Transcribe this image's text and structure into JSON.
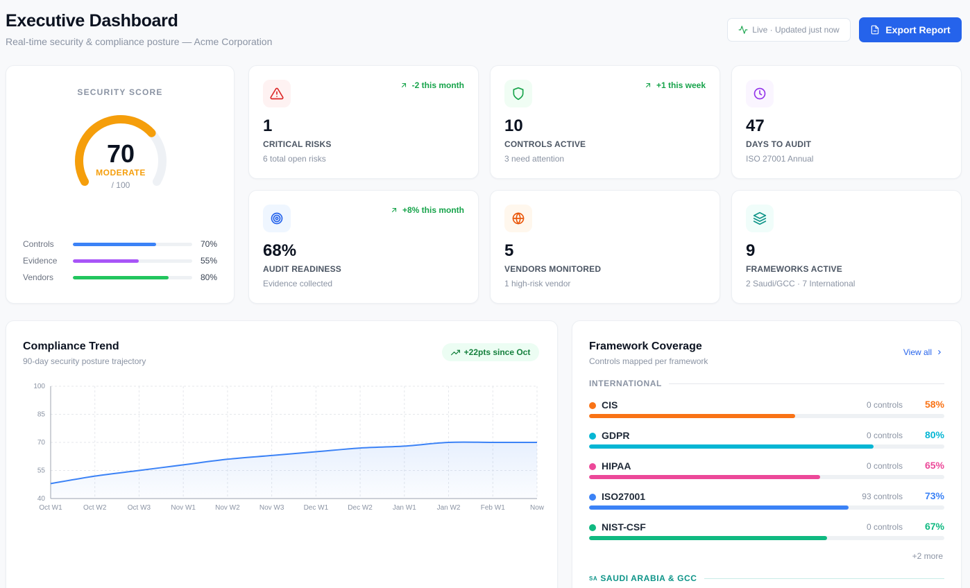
{
  "header": {
    "title": "Executive Dashboard",
    "subtitle": "Real-time security & compliance posture — Acme Corporation",
    "live_status": "Live · Updated just now",
    "export_label": "Export Report"
  },
  "score": {
    "label": "SECURITY SCORE",
    "value": "70",
    "rating": "MODERATE",
    "max": "/ 100",
    "fraction": 0.7,
    "color": "#f59e0b",
    "bars": [
      {
        "label": "Controls",
        "pct": "70%",
        "value": 70,
        "color": "#3b82f6"
      },
      {
        "label": "Evidence",
        "pct": "55%",
        "value": 55,
        "color": "#a855f7"
      },
      {
        "label": "Vendors",
        "pct": "80%",
        "value": 80,
        "color": "#22c55e"
      }
    ]
  },
  "stats": [
    {
      "value": "1",
      "name": "CRITICAL RISKS",
      "sub": "6 total open risks",
      "trend": "-2 this month",
      "icon": "alert-triangle-icon",
      "icon_color": "#dc2626",
      "icon_bg": "#fef2f2"
    },
    {
      "value": "10",
      "name": "CONTROLS ACTIVE",
      "sub": "3 need attention",
      "trend": "+1 this week",
      "icon": "shield-icon",
      "icon_color": "#16a34a",
      "icon_bg": "#f0fdf4"
    },
    {
      "value": "47",
      "name": "DAYS TO AUDIT",
      "sub": "ISO 27001 Annual",
      "trend": "",
      "icon": "clock-icon",
      "icon_color": "#9333ea",
      "icon_bg": "#faf5ff"
    },
    {
      "value": "68%",
      "name": "AUDIT READINESS",
      "sub": "Evidence collected",
      "trend": "+8% this month",
      "icon": "target-icon",
      "icon_color": "#2563eb",
      "icon_bg": "#eff6ff"
    },
    {
      "value": "5",
      "name": "VENDORS MONITORED",
      "sub": "1 high-risk vendor",
      "trend": "",
      "icon": "globe-icon",
      "icon_color": "#ea580c",
      "icon_bg": "#fff7ed"
    },
    {
      "value": "9",
      "name": "FRAMEWORKS ACTIVE",
      "sub": "2 Saudi/GCC · 7 International",
      "trend": "",
      "icon": "layers-icon",
      "icon_color": "#0d9488",
      "icon_bg": "#f0fdfa"
    }
  ],
  "trend": {
    "title": "Compliance Trend",
    "subtitle": "90-day security posture trajectory",
    "badge": "+22pts since Oct"
  },
  "chart_data": {
    "type": "area",
    "categories": [
      "Oct W1",
      "Oct W2",
      "Oct W3",
      "Nov W1",
      "Nov W2",
      "Nov W3",
      "Dec W1",
      "Dec W2",
      "Jan W1",
      "Jan W2",
      "Feb W1",
      "Now"
    ],
    "values": [
      48,
      52,
      55,
      58,
      61,
      63,
      65,
      67,
      68,
      70,
      70,
      70
    ],
    "yticks": [
      40,
      55,
      70,
      85,
      100
    ],
    "ylim": [
      40,
      100
    ],
    "color": "#3b82f6",
    "grid": true
  },
  "frameworks": {
    "title": "Framework Coverage",
    "subtitle": "Controls mapped per framework",
    "view_all": "View all",
    "international_label": "INTERNATIONAL",
    "saudi_label": "SAUDI ARABIA & GCC",
    "saudi_flag": "SA",
    "more": "+2 more",
    "items": [
      {
        "name": "CIS",
        "controls": "0 controls",
        "pct": "58%",
        "value": 58,
        "color": "#f97316"
      },
      {
        "name": "GDPR",
        "controls": "0 controls",
        "pct": "80%",
        "value": 80,
        "color": "#06b6d4"
      },
      {
        "name": "HIPAA",
        "controls": "0 controls",
        "pct": "65%",
        "value": 65,
        "color": "#ec4899"
      },
      {
        "name": "ISO27001",
        "controls": "93 controls",
        "pct": "73%",
        "value": 73,
        "color": "#3b82f6"
      },
      {
        "name": "NIST-CSF",
        "controls": "0 controls",
        "pct": "67%",
        "value": 67,
        "color": "#10b981"
      }
    ]
  }
}
